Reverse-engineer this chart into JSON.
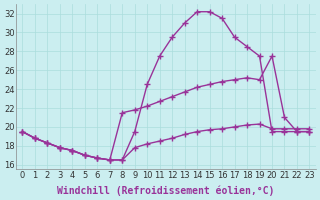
{
  "xlabel": "Windchill (Refroidissement éolien,°C)",
  "background_color": "#cbeef0",
  "line_color": "#993399",
  "xlim": [
    -0.5,
    23.5
  ],
  "ylim": [
    15.5,
    33.0
  ],
  "yticks": [
    16,
    18,
    20,
    22,
    24,
    26,
    28,
    30,
    32
  ],
  "xticks": [
    0,
    1,
    2,
    3,
    4,
    5,
    6,
    7,
    8,
    9,
    10,
    11,
    12,
    13,
    14,
    15,
    16,
    17,
    18,
    19,
    20,
    21,
    22,
    23
  ],
  "line1_x": [
    0,
    1,
    2,
    3,
    4,
    5,
    6,
    7,
    8,
    9,
    10,
    11,
    12,
    13,
    14,
    15,
    16,
    17,
    18,
    19,
    20,
    21,
    22,
    23
  ],
  "line1_y": [
    19.5,
    18.8,
    18.3,
    17.8,
    17.5,
    17.0,
    16.7,
    16.5,
    16.5,
    19.5,
    24.5,
    27.5,
    29.5,
    31.0,
    32.2,
    32.2,
    31.5,
    29.5,
    28.5,
    27.5,
    19.5,
    19.5,
    19.5,
    19.5
  ],
  "line2_x": [
    0,
    1,
    2,
    3,
    4,
    5,
    6,
    7,
    8,
    9,
    10,
    11,
    12,
    13,
    14,
    15,
    16,
    17,
    18,
    19,
    20,
    21,
    22,
    23
  ],
  "line2_y": [
    19.5,
    18.8,
    18.3,
    17.8,
    17.5,
    17.0,
    16.7,
    16.5,
    21.5,
    21.8,
    22.2,
    22.7,
    23.2,
    23.7,
    24.2,
    24.5,
    24.8,
    25.0,
    25.2,
    25.0,
    27.5,
    21.0,
    19.5,
    19.5
  ],
  "line3_x": [
    0,
    1,
    2,
    3,
    4,
    5,
    6,
    7,
    8,
    9,
    10,
    11,
    12,
    13,
    14,
    15,
    16,
    17,
    18,
    19,
    20,
    21,
    22,
    23
  ],
  "line3_y": [
    19.5,
    18.8,
    18.3,
    17.8,
    17.5,
    17.0,
    16.7,
    16.5,
    16.5,
    17.8,
    18.2,
    18.5,
    18.8,
    19.2,
    19.5,
    19.7,
    19.8,
    20.0,
    20.2,
    20.3,
    19.8,
    19.8,
    19.8,
    19.8
  ],
  "grid_color": "#aadddd",
  "marker": "+",
  "markersize": 4,
  "linewidth": 1.0,
  "xlabel_fontsize": 7,
  "tick_fontsize": 6
}
